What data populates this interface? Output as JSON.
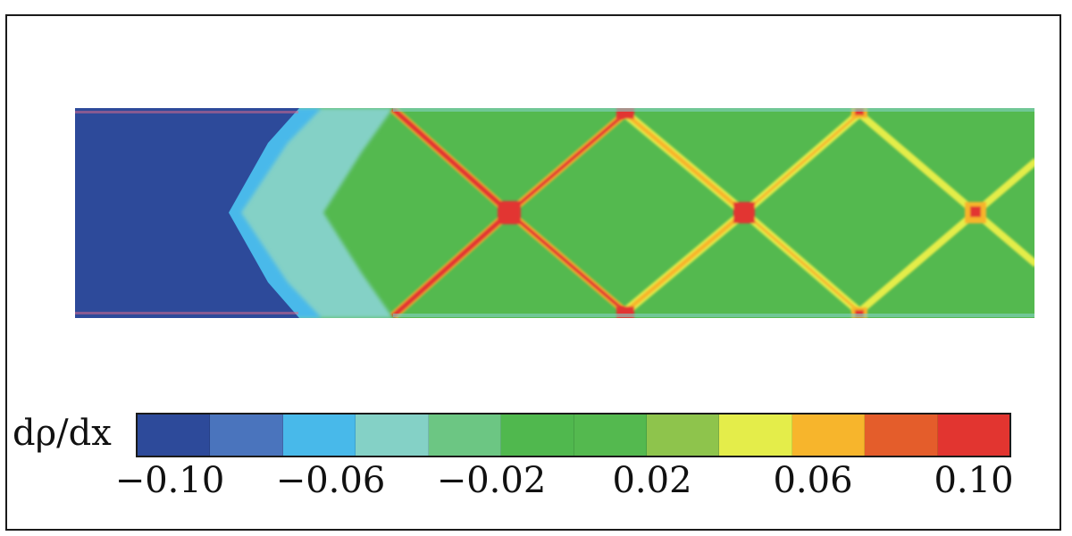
{
  "colorbar": {
    "variable_label": "dρ/dx",
    "colors": [
      "#2d4a9a",
      "#4a74bd",
      "#48b9ea",
      "#84d1c6",
      "#6cc683",
      "#50b84e",
      "#54b94f",
      "#8ec44c",
      "#e4ed4a",
      "#f7b52c",
      "#e45d2b",
      "#e23530"
    ],
    "tick_labels": [
      "−0.10",
      "−0.06",
      "−0.02",
      "0.02",
      "0.06",
      "0.10"
    ]
  },
  "field": {
    "variable": "dρ/dx",
    "background_color": "#54b94f",
    "low_color": "#2d4a9a",
    "shock_colors": {
      "strong": "#e23530",
      "medium": "#f7b52c",
      "weak": "#e4ed4a"
    }
  }
}
